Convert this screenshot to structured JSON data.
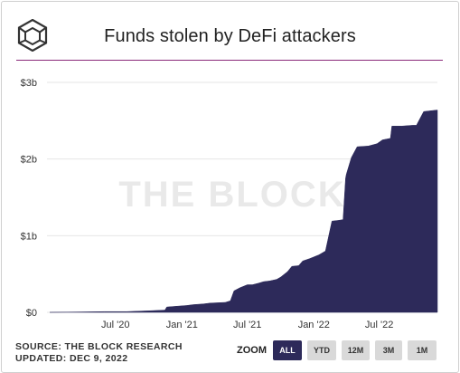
{
  "title": "Funds stolen by DeFi attackers",
  "watermark": "THE BLOCK",
  "source": "SOURCE: THE BLOCK RESEARCH",
  "updated": "UPDATED: DEC 9, 2022",
  "zoom": {
    "label": "ZOOM",
    "options": [
      "ALL",
      "YTD",
      "12M",
      "3M",
      "1M"
    ],
    "selected": "ALL"
  },
  "colors": {
    "area": "#2d2a5a",
    "rule": "#8a2a7a",
    "grid": "#e6e6e6"
  },
  "chart_data": {
    "type": "area",
    "title": "Funds stolen by DeFi attackers",
    "xlabel": "",
    "ylabel": "",
    "y_ticks": [
      "$0",
      "$1b",
      "$2b",
      "$3b"
    ],
    "x_ticks": [
      "Jul '20",
      "Jan '21",
      "Jul '21",
      "Jan '22",
      "Jul '22"
    ],
    "ylim_billions": [
      0,
      3
    ],
    "grid": true,
    "series": [
      {
        "unit": "billions USD",
        "x": [
          "2020-01-01",
          "2020-06-01",
          "2020-08-01",
          "2020-10-01",
          "2020-11-15",
          "2020-11-20",
          "2021-01-15",
          "2021-02-01",
          "2021-03-01",
          "2021-03-20",
          "2021-05-01",
          "2021-05-15",
          "2021-05-25",
          "2021-06-10",
          "2021-07-01",
          "2021-07-15",
          "2021-08-01",
          "2021-08-15",
          "2021-09-01",
          "2021-09-20",
          "2021-10-01",
          "2021-10-20",
          "2021-11-01",
          "2021-11-20",
          "2021-12-01",
          "2021-12-20",
          "2022-01-15",
          "2022-02-02",
          "2022-02-20",
          "2022-03-10",
          "2022-03-23",
          "2022-03-30",
          "2022-04-01",
          "2022-04-15",
          "2022-05-01",
          "2022-06-01",
          "2022-06-25",
          "2022-07-10",
          "2022-08-01",
          "2022-08-05",
          "2022-09-01",
          "2022-10-01",
          "2022-10-12",
          "2022-11-01",
          "2022-12-09"
        ],
        "values": [
          0.0,
          0.01,
          0.01,
          0.02,
          0.03,
          0.07,
          0.09,
          0.1,
          0.11,
          0.12,
          0.13,
          0.15,
          0.28,
          0.32,
          0.36,
          0.36,
          0.38,
          0.4,
          0.41,
          0.43,
          0.46,
          0.53,
          0.6,
          0.61,
          0.67,
          0.7,
          0.75,
          0.8,
          1.19,
          1.2,
          1.21,
          1.75,
          1.8,
          2.02,
          2.16,
          2.17,
          2.2,
          2.25,
          2.27,
          2.43,
          2.43,
          2.44,
          2.44,
          2.62,
          2.64
        ]
      }
    ]
  }
}
